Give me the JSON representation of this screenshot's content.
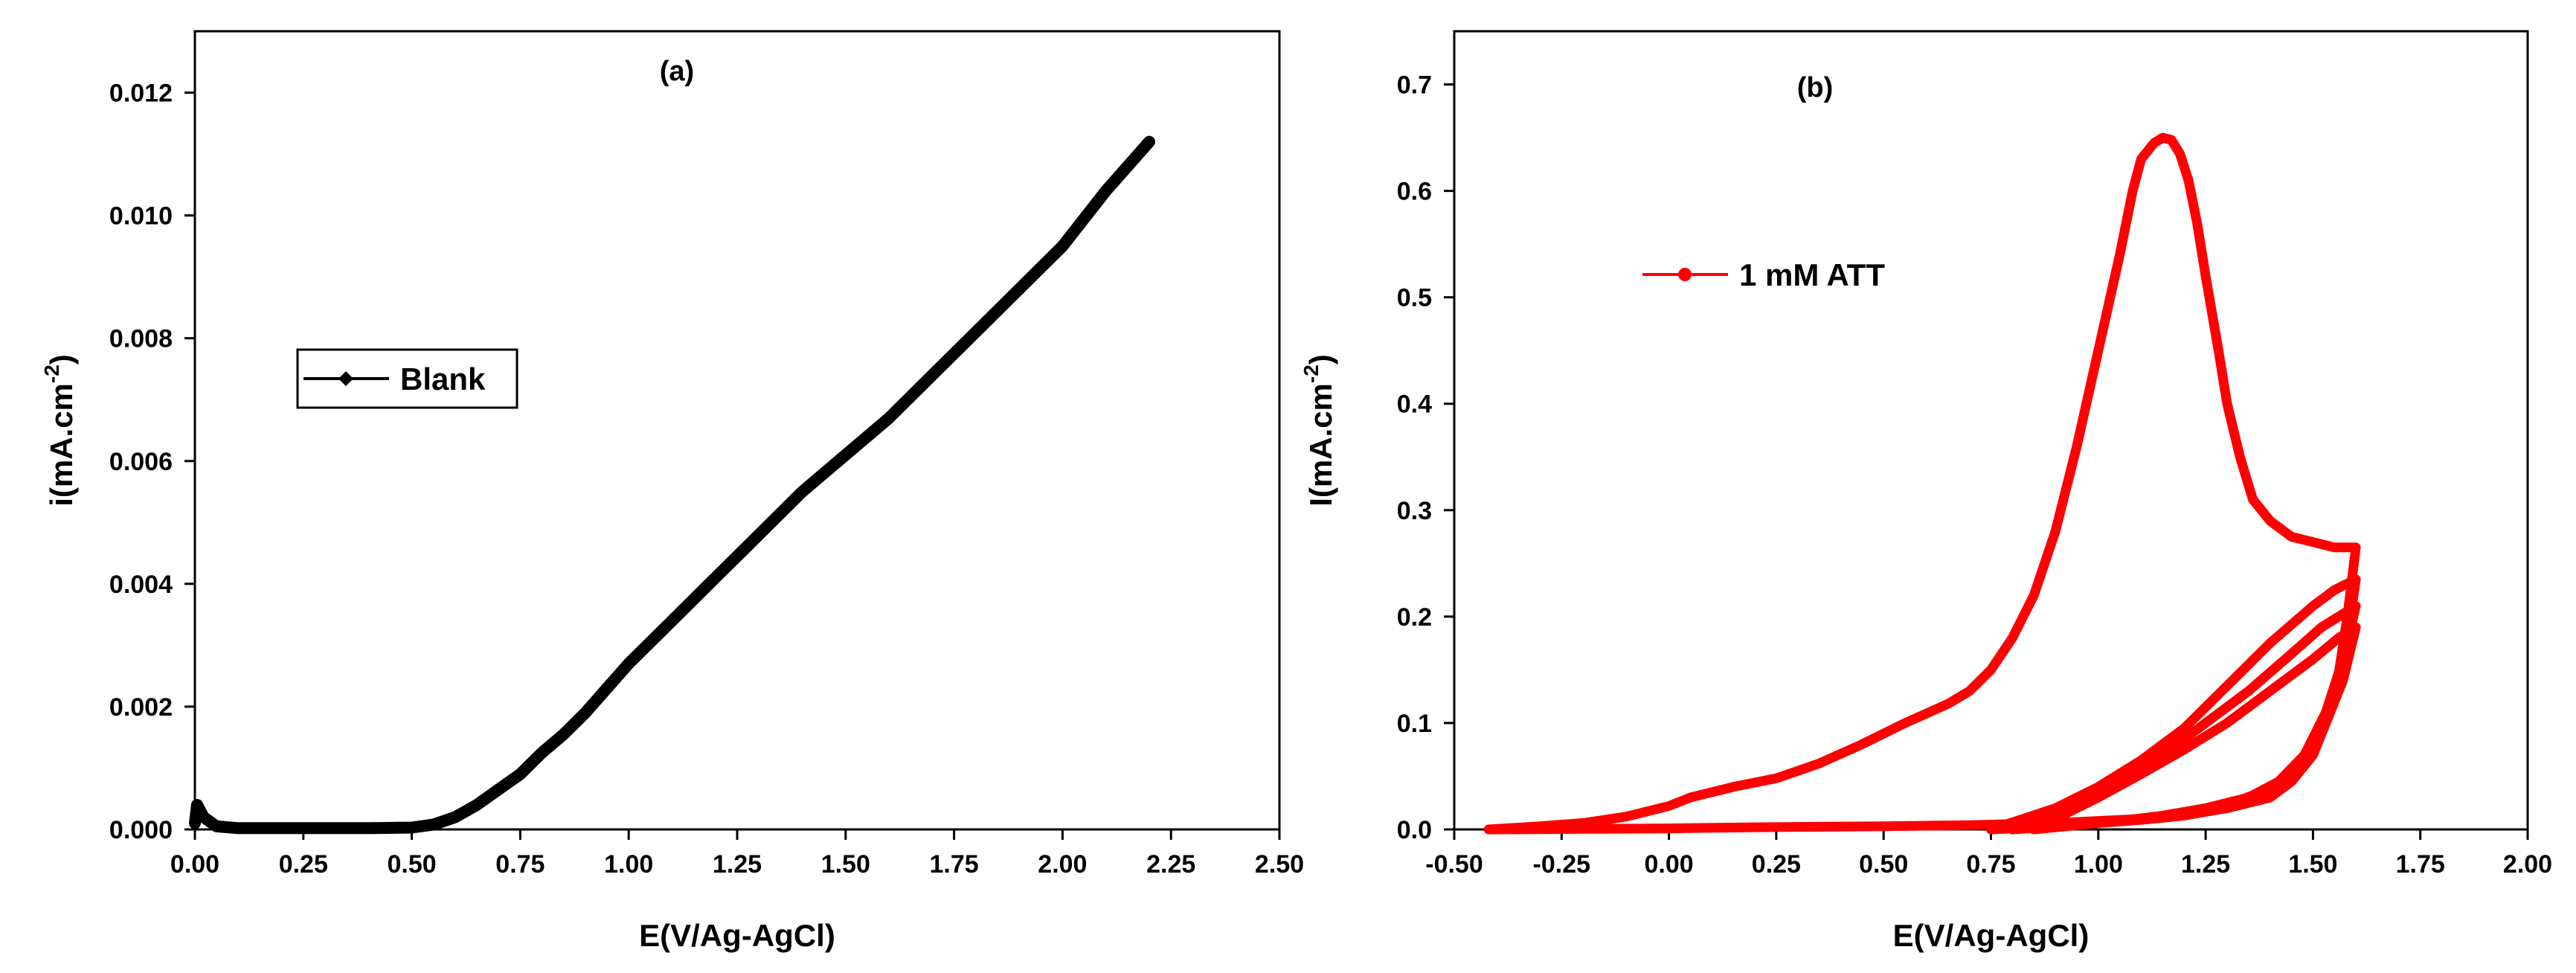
{
  "chart_data": [
    {
      "type": "line",
      "panel_label": "(a)",
      "xlabel": "E(V/Ag-AgCl)",
      "ylabel": "i(mA.cm",
      "ylabel_sup": "-2",
      "ylabel_close": ")",
      "xlim": [
        0.0,
        2.5
      ],
      "ylim": [
        0.0,
        0.013
      ],
      "xticks": [
        0.0,
        0.25,
        0.5,
        0.75,
        1.0,
        1.25,
        1.5,
        1.75,
        2.0,
        2.25,
        2.5
      ],
      "xtick_labels": [
        "0.00",
        "0.25",
        "0.50",
        "0.75",
        "1.00",
        "1.25",
        "1.50",
        "1.75",
        "2.00",
        "2.25",
        "2.50"
      ],
      "yticks": [
        0.0,
        0.002,
        0.004,
        0.006,
        0.008,
        0.01,
        0.012
      ],
      "ytick_labels": [
        "0.000",
        "0.002",
        "0.004",
        "0.006",
        "0.008",
        "0.010",
        "0.012"
      ],
      "grid": false,
      "legend_position": "center-left",
      "series": [
        {
          "name": "Blank",
          "color": "#000000",
          "marker": "diamond",
          "x": [
            0.0,
            0.005,
            0.02,
            0.05,
            0.1,
            0.2,
            0.3,
            0.4,
            0.5,
            0.55,
            0.6,
            0.65,
            0.7,
            0.75,
            0.8,
            0.85,
            0.9,
            0.95,
            1.0,
            1.1,
            1.2,
            1.3,
            1.4,
            1.5,
            1.6,
            1.7,
            1.8,
            1.9,
            2.0,
            2.1,
            2.2
          ],
          "y": [
            0.0001,
            0.0004,
            0.0002,
            5e-05,
            2e-05,
            2e-05,
            2e-05,
            2e-05,
            3e-05,
            8e-05,
            0.0002,
            0.0004,
            0.00065,
            0.0009,
            0.00125,
            0.00155,
            0.0019,
            0.0023,
            0.0027,
            0.0034,
            0.0041,
            0.0048,
            0.0055,
            0.0061,
            0.0067,
            0.0074,
            0.0081,
            0.0088,
            0.0095,
            0.0104,
            0.0112
          ]
        }
      ]
    },
    {
      "type": "line",
      "panel_label": "(b)",
      "xlabel": "E(V/Ag-AgCl)",
      "ylabel": "I(mA.cm",
      "ylabel_sup": "-2",
      "ylabel_close": ")",
      "xlim": [
        -0.5,
        2.0
      ],
      "ylim": [
        0.0,
        0.75
      ],
      "xticks": [
        -0.5,
        -0.25,
        0.0,
        0.25,
        0.5,
        0.75,
        1.0,
        1.25,
        1.5,
        1.75,
        2.0
      ],
      "xtick_labels": [
        "-0.50",
        "-0.25",
        "0.00",
        "0.25",
        "0.50",
        "0.75",
        "1.00",
        "1.25",
        "1.50",
        "1.75",
        "2.00"
      ],
      "yticks": [
        0.0,
        0.1,
        0.2,
        0.3,
        0.4,
        0.5,
        0.6,
        0.7
      ],
      "ytick_labels": [
        "0.0",
        "0.1",
        "0.2",
        "0.3",
        "0.4",
        "0.5",
        "0.6",
        "0.7"
      ],
      "grid": false,
      "legend_position": "upper-left",
      "series": [
        {
          "name": "1 mM ATT",
          "color": "#ff0000",
          "marker": "circle",
          "cycles": [
            {
              "x": [
                -0.42,
                -0.3,
                -0.2,
                -0.1,
                0.0,
                0.05,
                0.1,
                0.15,
                0.25,
                0.35,
                0.45,
                0.55,
                0.65,
                0.7,
                0.75,
                0.8,
                0.85,
                0.9,
                0.95,
                1.0,
                1.05,
                1.08,
                1.1,
                1.13,
                1.15,
                1.17,
                1.19,
                1.21,
                1.23,
                1.25,
                1.28,
                1.3,
                1.33,
                1.36,
                1.4,
                1.45,
                1.5,
                1.55,
                1.6,
                1.58,
                1.55,
                1.5,
                1.45,
                1.4,
                1.3,
                1.2,
                1.1,
                1.0,
                0.9,
                0.8,
                0.7,
                0.5,
                0.2,
                0.0,
                -0.2,
                -0.42
              ],
              "y": [
                0.0,
                0.003,
                0.006,
                0.012,
                0.022,
                0.03,
                0.035,
                0.04,
                0.048,
                0.062,
                0.08,
                0.1,
                0.118,
                0.13,
                0.15,
                0.18,
                0.22,
                0.28,
                0.36,
                0.45,
                0.54,
                0.6,
                0.63,
                0.645,
                0.65,
                0.648,
                0.635,
                0.61,
                0.57,
                0.52,
                0.45,
                0.4,
                0.35,
                0.31,
                0.29,
                0.275,
                0.27,
                0.265,
                0.265,
                0.2,
                0.12,
                0.07,
                0.045,
                0.03,
                0.02,
                0.015,
                0.01,
                0.008,
                0.006,
                0.005,
                0.004,
                0.003,
                0.002,
                0.001,
                0.0005,
                0.0
              ]
            },
            {
              "x": [
                0.75,
                0.9,
                1.0,
                1.1,
                1.2,
                1.3,
                1.4,
                1.5,
                1.55,
                1.6,
                1.58,
                1.55,
                1.5,
                1.45,
                1.4,
                1.3,
                1.2,
                1.1,
                1.0,
                0.9,
                0.75
              ],
              "y": [
                0.0,
                0.02,
                0.04,
                0.065,
                0.095,
                0.135,
                0.175,
                0.21,
                0.225,
                0.235,
                0.18,
                0.12,
                0.07,
                0.045,
                0.03,
                0.02,
                0.013,
                0.009,
                0.006,
                0.003,
                0.0
              ]
            },
            {
              "x": [
                0.8,
                0.95,
                1.05,
                1.15,
                1.25,
                1.35,
                1.45,
                1.52,
                1.58,
                1.6,
                1.57,
                1.53,
                1.48,
                1.42,
                1.35,
                1.25,
                1.15,
                1.05,
                0.95,
                0.8
              ],
              "y": [
                0.0,
                0.025,
                0.045,
                0.07,
                0.1,
                0.13,
                0.165,
                0.19,
                0.205,
                0.21,
                0.16,
                0.11,
                0.07,
                0.045,
                0.03,
                0.02,
                0.013,
                0.008,
                0.004,
                0.0
              ]
            },
            {
              "x": [
                0.85,
                1.0,
                1.1,
                1.2,
                1.3,
                1.4,
                1.5,
                1.56,
                1.6,
                1.57,
                1.52,
                1.46,
                1.38,
                1.28,
                1.15,
                1.0,
                0.85
              ],
              "y": [
                0.0,
                0.03,
                0.052,
                0.075,
                0.1,
                0.13,
                0.16,
                0.18,
                0.19,
                0.14,
                0.09,
                0.055,
                0.035,
                0.02,
                0.012,
                0.006,
                0.0
              ]
            }
          ]
        }
      ]
    }
  ]
}
